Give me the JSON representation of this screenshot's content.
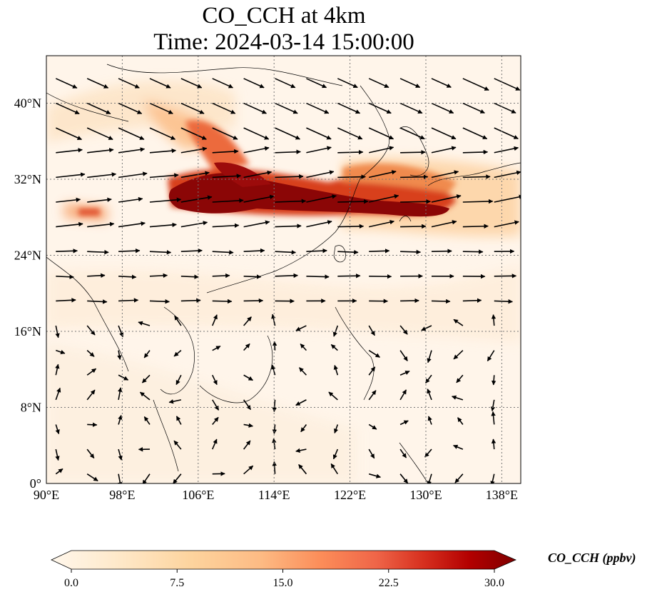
{
  "title": {
    "line1": "CO_CCH at 4km",
    "line2": "Time: 2024-03-14 15:00:00"
  },
  "map": {
    "extent": {
      "lon_min": 90,
      "lon_max": 140,
      "lat_min": 0,
      "lat_max": 45
    },
    "lon_ticks": [
      "90°E",
      "98°E",
      "106°E",
      "114°E",
      "122°E",
      "130°E",
      "138°E"
    ],
    "lat_ticks": [
      "0°",
      "8°N",
      "16°N",
      "24°N",
      "32°N",
      "40°N"
    ],
    "grid": "dotted",
    "wind_vectors": true
  },
  "colorbar": {
    "label": "CO_CCH (ppbv)",
    "ticks": [
      "0.0",
      "7.5",
      "15.0",
      "22.5",
      "30.0"
    ],
    "min": 0,
    "max": 30,
    "colormap": "OrRd",
    "extend": "both"
  },
  "colors": {
    "low": "#fff7ec",
    "mid": "#fdbb84",
    "high": "#d7301f",
    "max": "#7f0000"
  }
}
